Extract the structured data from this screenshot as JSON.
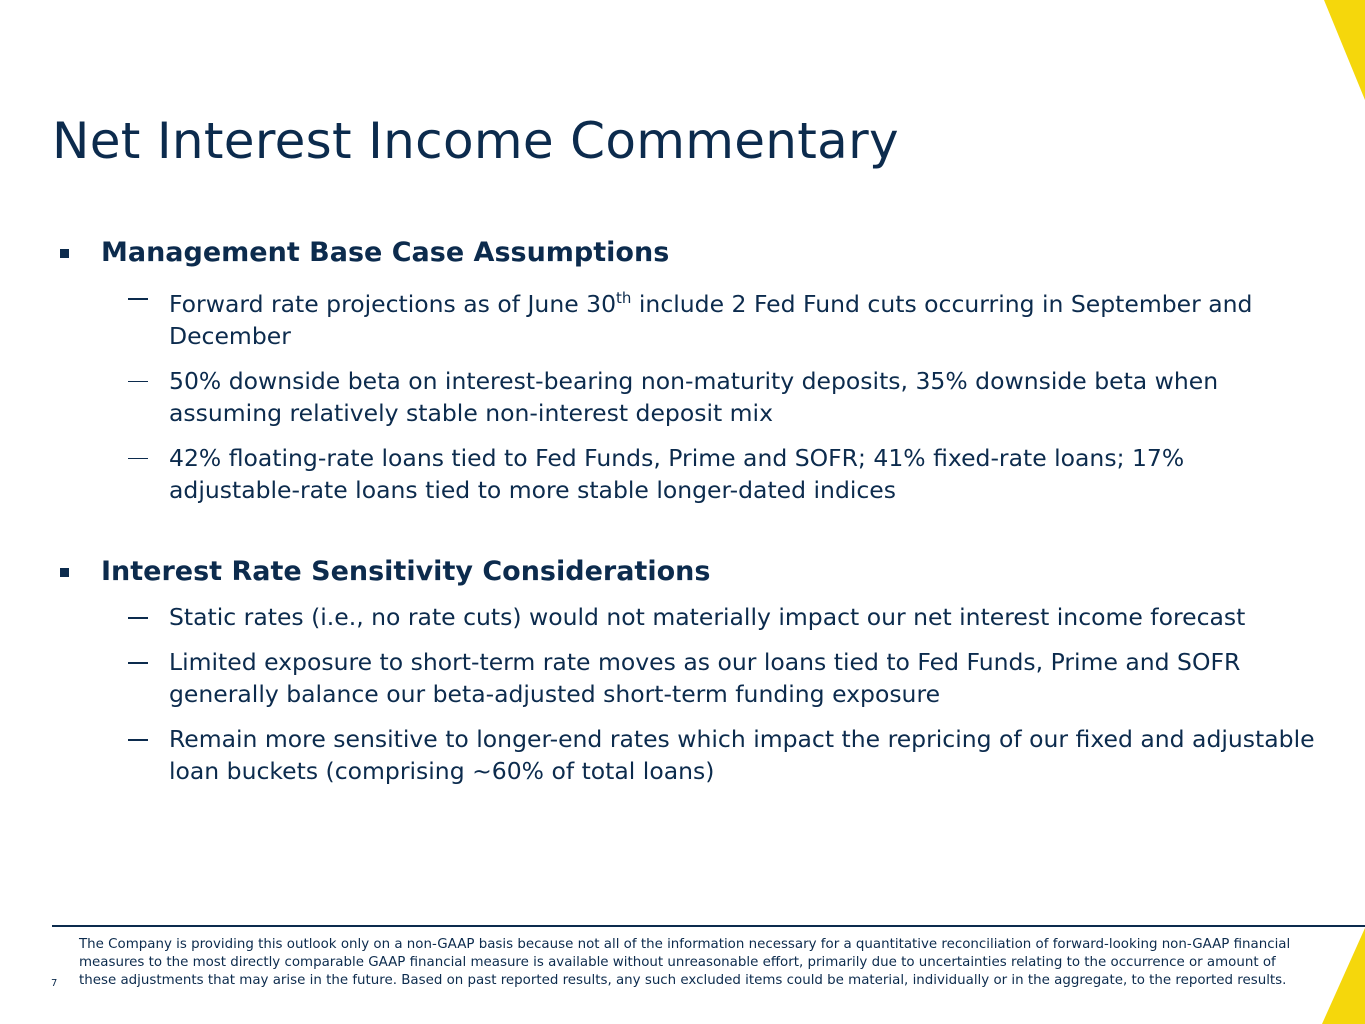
{
  "title": "Net Interest Income Commentary",
  "sections": [
    {
      "heading": "Management Base Case Assumptions",
      "items": [
        {
          "before": "Forward rate projections as of June 30",
          "sup": "th",
          "after": " include 2 Fed Fund cuts occurring in September and December"
        },
        {
          "text": "50% downside beta on interest-bearing non-maturity deposits, 35% downside beta when assuming relatively stable non-interest deposit mix"
        },
        {
          "text": "42% floating-rate loans tied to Fed Funds, Prime and SOFR; 41% fixed-rate loans; 17% adjustable-rate loans tied to more stable longer-dated indices"
        }
      ]
    },
    {
      "heading": "Interest Rate Sensitivity Considerations",
      "items": [
        {
          "text": "Static rates (i.e., no rate cuts) would not materially impact our net interest income forecast"
        },
        {
          "text": "Limited exposure to short-term rate moves as our loans tied to Fed Funds, Prime and SOFR generally balance our beta-adjusted short-term funding exposure"
        },
        {
          "text": "Remain more sensitive to longer-end rates which impact the repricing of our fixed and adjustable loan buckets (comprising ~60% of total loans)"
        }
      ]
    }
  ],
  "footnote": "The Company is providing this outlook only on a non-GAAP basis because not all of the information necessary for a quantitative reconciliation of forward-looking non-GAAP financial measures to the most directly comparable GAAP financial measure is available without unreasonable effort, primarily due to uncertainties relating to the occurrence or amount of these adjustments that may arise in the future. Based on past reported results, any such excluded items could be material, individually or in the aggregate, to the reported results.",
  "page_number": "7"
}
